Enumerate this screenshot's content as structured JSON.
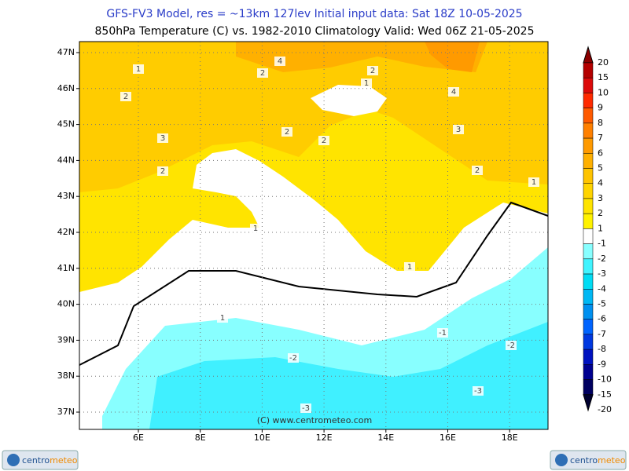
{
  "header": {
    "title": "GFS-FV3 Model, res = ~13km 127lev   Initial input data: Sat 18Z 10-05-2025",
    "subtitle": "850hPa Temperature (C) vs. 1982-2010 Climatology  Valid: Wed 06Z 21-05-2025"
  },
  "map": {
    "lat_labels": [
      "47N",
      "46N",
      "45N",
      "44N",
      "43N",
      "42N",
      "41N",
      "40N",
      "39N",
      "38N",
      "37N"
    ],
    "lon_labels": [
      "6E",
      "8E",
      "10E",
      "12E",
      "14E",
      "16E",
      "18E"
    ],
    "contour_labels": [
      1,
      2,
      3,
      2,
      2,
      4,
      2,
      2,
      1,
      2,
      4,
      3,
      2,
      1,
      1,
      1,
      1,
      -1,
      -2,
      -2,
      -3,
      -3
    ],
    "watermark": "(C) www.centrometeo.com"
  },
  "colorbar": {
    "labels": [
      20,
      15,
      10,
      9,
      8,
      7,
      6,
      5,
      4,
      3,
      2,
      1,
      -1,
      -2,
      -3,
      -4,
      -5,
      -6,
      -7,
      -8,
      -9,
      -10,
      -15,
      -20
    ],
    "colors": [
      "#8c0000",
      "#b40000",
      "#dc0a0a",
      "#ff2a00",
      "#ff5a00",
      "#ff8000",
      "#ff9a00",
      "#ffb000",
      "#ffc400",
      "#ffd400",
      "#ffe400",
      "#fff200",
      "#ffffff",
      "#88ffff",
      "#40f4ff",
      "#00dcf4",
      "#00b8f4",
      "#0090f0",
      "#0064ff",
      "#0038e0",
      "#0012c0",
      "#000090",
      "#000060",
      "#000030"
    ]
  },
  "logo": {
    "parts": [
      "centro",
      "meteo"
    ]
  }
}
